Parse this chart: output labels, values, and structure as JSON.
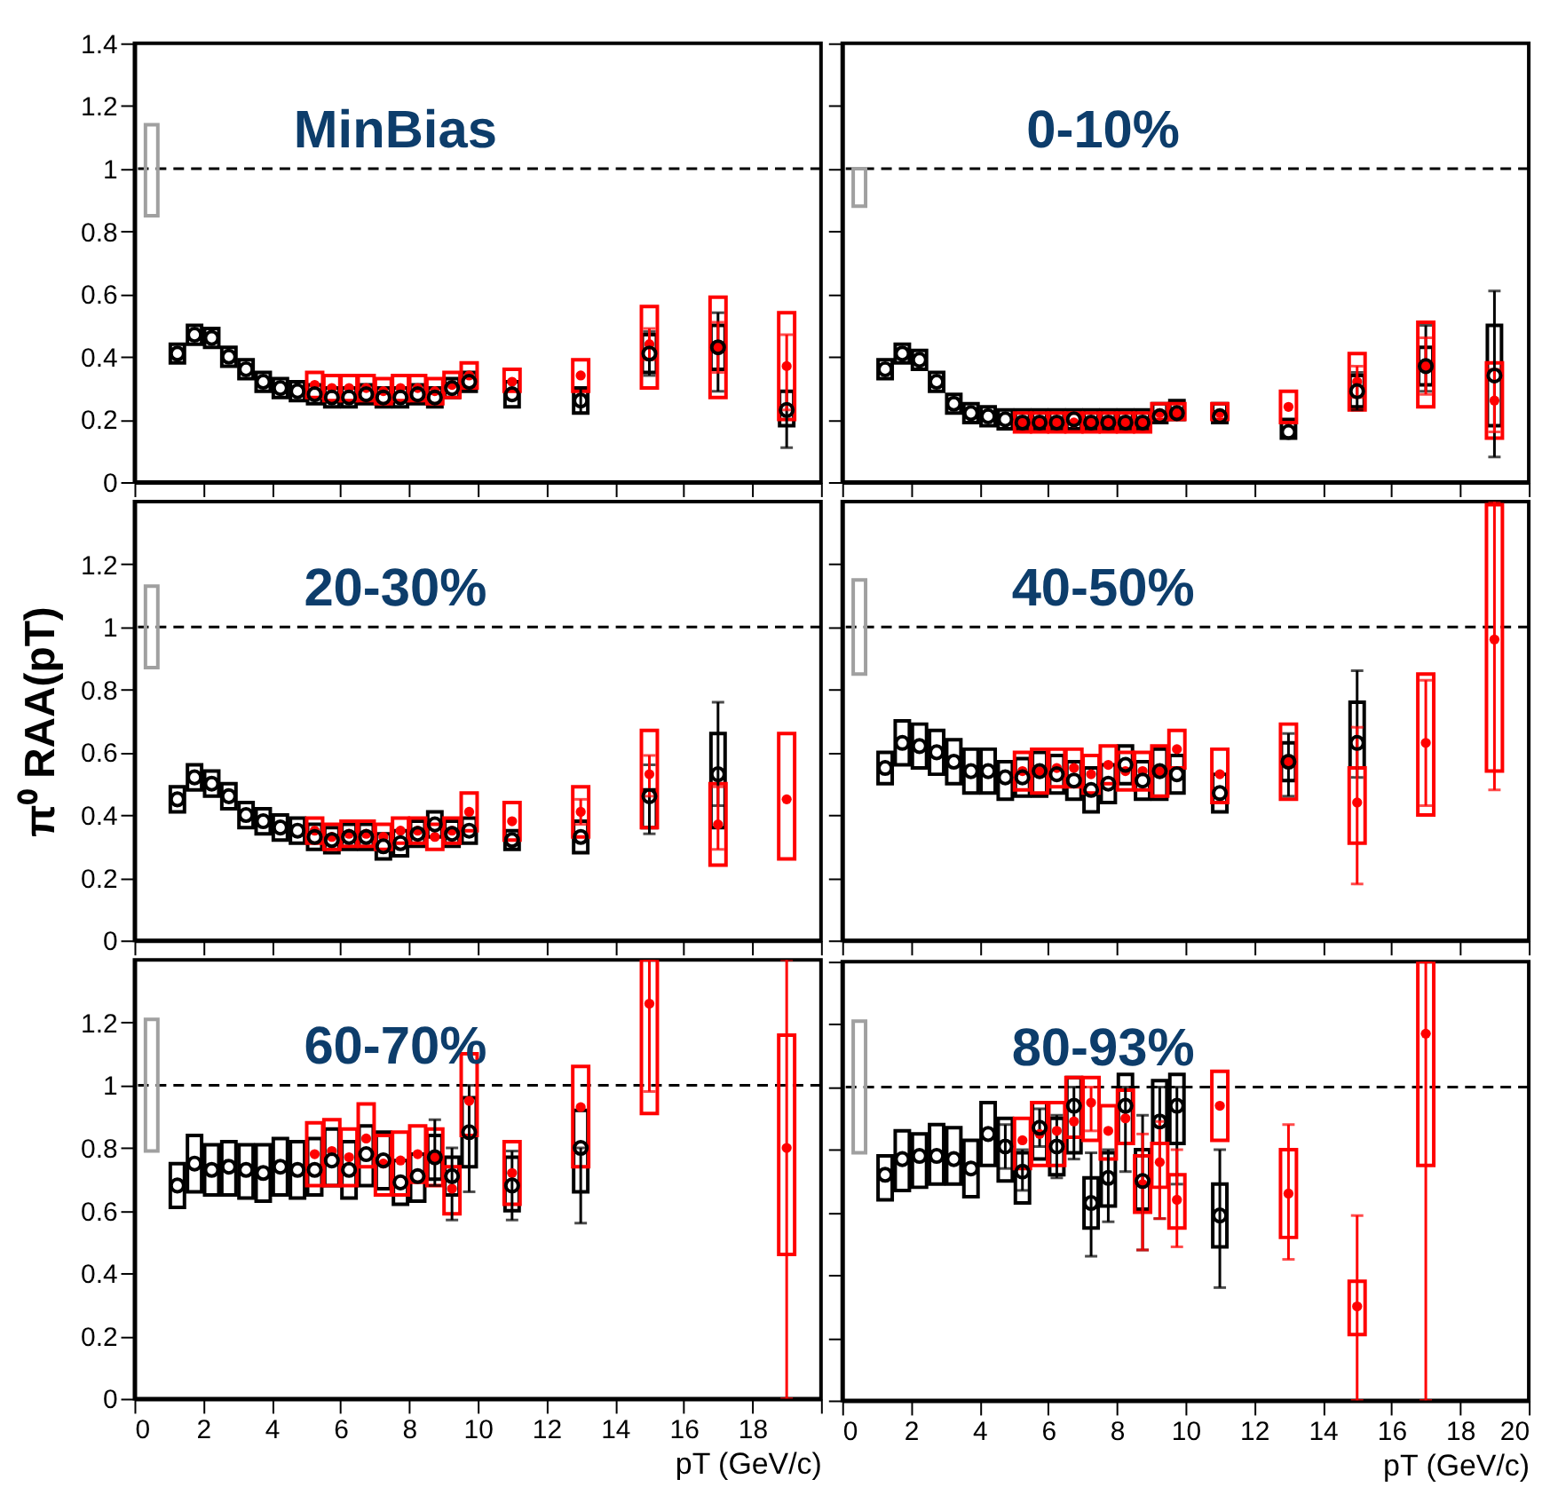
{
  "chart_data": [
    {
      "type": "scatter",
      "title": "MinBias",
      "xlim": [
        0,
        20
      ],
      "ylim": [
        0,
        1.4
      ],
      "xticks": [
        0,
        2,
        4,
        6,
        8,
        10,
        12,
        14,
        16,
        18,
        20
      ],
      "yticks": [
        0,
        0.2,
        0.4,
        0.6,
        0.8,
        1,
        1.2,
        1.4
      ],
      "tick_labels": "y",
      "grid": false,
      "ref_lines": [
        {
          "axis": "y",
          "value": 1,
          "line_style": "dashed",
          "color": "#000000"
        }
      ],
      "series": [
        {
          "type": "bar",
          "color": "#a0a0a0",
          "x": [
            0.5
          ],
          "base": [
            0.85
          ],
          "values": [
            0.29
          ]
        },
        {
          "type": "bar",
          "color": "#000000",
          "x": [
            1.25,
            1.75,
            2.25,
            2.75,
            3.25,
            3.75,
            4.25,
            4.75,
            5.25,
            5.75,
            6.25,
            6.75,
            7.25,
            7.75,
            8.25,
            8.75,
            9.25,
            9.75,
            11,
            13,
            15,
            17,
            19
          ],
          "base": [
            0.38,
            0.44,
            0.43,
            0.37,
            0.33,
            0.29,
            0.27,
            0.26,
            0.25,
            0.24,
            0.24,
            0.25,
            0.24,
            0.24,
            0.25,
            0.24,
            0.27,
            0.29,
            0.24,
            0.22,
            0.35,
            0.36,
            0.18
          ],
          "values": [
            0.06,
            0.06,
            0.06,
            0.06,
            0.06,
            0.06,
            0.06,
            0.06,
            0.06,
            0.06,
            0.06,
            0.06,
            0.06,
            0.06,
            0.06,
            0.06,
            0.06,
            0.06,
            0.08,
            0.08,
            0.12,
            0.14,
            0.11
          ]
        },
        {
          "type": "bar",
          "color": "#ff0000",
          "x": [
            5.25,
            5.75,
            6.25,
            6.75,
            7.25,
            7.75,
            8.25,
            8.75,
            9.25,
            9.75,
            11,
            13,
            15,
            17,
            19
          ],
          "base": [
            0.27,
            0.26,
            0.26,
            0.26,
            0.25,
            0.26,
            0.26,
            0.25,
            0.27,
            0.3,
            0.29,
            0.29,
            0.3,
            0.27,
            0.2
          ],
          "values": [
            0.08,
            0.08,
            0.08,
            0.08,
            0.08,
            0.08,
            0.08,
            0.08,
            0.08,
            0.08,
            0.07,
            0.1,
            0.26,
            0.32,
            0.34
          ]
        },
        {
          "type": "scatter",
          "marker": "circle",
          "color": "#000000",
          "x": [
            1.25,
            1.75,
            2.25,
            2.75,
            3.25,
            3.75,
            4.25,
            4.75,
            5.25,
            5.75,
            6.25,
            6.75,
            7.25,
            7.75,
            8.25,
            8.75,
            9.25,
            9.75,
            11,
            13,
            15,
            17,
            19
          ],
          "values": [
            0.41,
            0.47,
            0.46,
            0.4,
            0.36,
            0.32,
            0.3,
            0.29,
            0.28,
            0.27,
            0.27,
            0.28,
            0.27,
            0.27,
            0.28,
            0.27,
            0.3,
            0.32,
            0.28,
            0.26,
            0.41,
            0.43,
            0.23
          ],
          "errors": [
            null,
            null,
            null,
            null,
            null,
            null,
            null,
            null,
            null,
            null,
            null,
            null,
            null,
            null,
            null,
            null,
            null,
            null,
            null,
            [
              0.22,
              0.3
            ],
            [
              0.34,
              0.48
            ],
            [
              0.29,
              0.54
            ],
            [
              0.11,
              0.29
            ]
          ]
        },
        {
          "type": "scatter",
          "marker": "circle",
          "color": "#ff0000",
          "x": [
            5.25,
            5.75,
            6.25,
            6.75,
            7.25,
            7.75,
            8.25,
            8.75,
            9.25,
            9.75,
            11,
            13,
            15,
            17,
            19
          ],
          "values": [
            0.31,
            0.3,
            0.3,
            0.3,
            0.29,
            0.3,
            0.3,
            0.29,
            0.31,
            0.34,
            0.32,
            0.34,
            0.44,
            0.43,
            0.37
          ],
          "errors": [
            null,
            null,
            null,
            null,
            null,
            null,
            null,
            null,
            null,
            null,
            null,
            null,
            [
              0.39,
              0.49
            ],
            [
              0.35,
              0.51
            ],
            [
              0.23,
              0.47
            ]
          ]
        }
      ]
    },
    {
      "type": "scatter",
      "title": "0-10%",
      "xlim": [
        0,
        20
      ],
      "ylim": [
        0,
        1.4
      ],
      "xticks": [
        0,
        2,
        4,
        6,
        8,
        10,
        12,
        14,
        16,
        18,
        20
      ],
      "yticks": [
        0,
        0.2,
        0.4,
        0.6,
        0.8,
        1,
        1.2,
        1.4
      ],
      "tick_labels": false,
      "grid": false,
      "ref_lines": [
        {
          "axis": "y",
          "value": 1,
          "line_style": "dashed",
          "color": "#000000"
        }
      ],
      "series": [
        {
          "type": "bar",
          "color": "#a0a0a0",
          "x": [
            0.5
          ],
          "base": [
            0.88
          ],
          "values": [
            0.12
          ]
        },
        {
          "type": "bar",
          "color": "#000000",
          "x": [
            1.25,
            1.75,
            2.25,
            2.75,
            3.25,
            3.75,
            4.25,
            4.75,
            5.25,
            5.75,
            6.25,
            6.75,
            7.25,
            7.75,
            8.25,
            8.75,
            9.25,
            9.75,
            11,
            13,
            15,
            17,
            19
          ],
          "base": [
            0.33,
            0.38,
            0.36,
            0.29,
            0.22,
            0.19,
            0.18,
            0.17,
            0.17,
            0.17,
            0.17,
            0.17,
            0.17,
            0.17,
            0.17,
            0.17,
            0.19,
            0.2,
            0.19,
            0.14,
            0.24,
            0.31,
            0.18
          ],
          "values": [
            0.06,
            0.06,
            0.06,
            0.06,
            0.06,
            0.06,
            0.06,
            0.06,
            0.06,
            0.06,
            0.06,
            0.06,
            0.06,
            0.06,
            0.06,
            0.06,
            0.06,
            0.06,
            0.06,
            0.06,
            0.1,
            0.12,
            0.32
          ]
        },
        {
          "type": "bar",
          "color": "#ff0000",
          "x": [
            5.25,
            5.75,
            6.25,
            6.75,
            7.25,
            7.75,
            8.25,
            8.75,
            9.25,
            9.75,
            11,
            13,
            15,
            17,
            19
          ],
          "base": [
            0.16,
            0.16,
            0.16,
            0.16,
            0.16,
            0.16,
            0.16,
            0.16,
            0.2,
            0.2,
            0.2,
            0.19,
            0.23,
            0.24,
            0.14
          ],
          "values": [
            0.06,
            0.06,
            0.06,
            0.06,
            0.06,
            0.06,
            0.06,
            0.06,
            0.05,
            0.05,
            0.05,
            0.1,
            0.18,
            0.27,
            0.24
          ]
        },
        {
          "type": "scatter",
          "marker": "circle",
          "color": "#000000",
          "x": [
            1.25,
            1.75,
            2.25,
            2.75,
            3.25,
            3.75,
            4.25,
            4.75,
            5.25,
            5.75,
            6.25,
            6.75,
            7.25,
            7.75,
            8.25,
            8.75,
            9.25,
            9.75,
            11,
            13,
            15,
            17,
            19
          ],
          "values": [
            0.36,
            0.41,
            0.39,
            0.32,
            0.25,
            0.22,
            0.21,
            0.2,
            0.19,
            0.19,
            0.19,
            0.2,
            0.19,
            0.19,
            0.19,
            0.19,
            0.21,
            0.22,
            0.21,
            0.16,
            0.29,
            0.37,
            0.34
          ],
          "errors": [
            null,
            null,
            null,
            null,
            null,
            null,
            null,
            null,
            null,
            null,
            null,
            null,
            null,
            null,
            null,
            null,
            null,
            null,
            null,
            null,
            [
              0.23,
              0.35
            ],
            [
              0.29,
              0.5
            ],
            [
              0.08,
              0.61
            ]
          ]
        },
        {
          "type": "scatter",
          "marker": "circle",
          "color": "#ff0000",
          "x": [
            5.25,
            5.75,
            6.25,
            6.75,
            7.25,
            7.75,
            8.25,
            8.75,
            9.25,
            9.75,
            11,
            13,
            15,
            17,
            19
          ],
          "values": [
            0.19,
            0.19,
            0.19,
            0.19,
            0.19,
            0.19,
            0.19,
            0.19,
            0.22,
            0.22,
            0.22,
            0.24,
            0.32,
            0.37,
            0.26
          ],
          "errors": [
            null,
            null,
            null,
            null,
            null,
            null,
            null,
            null,
            null,
            null,
            null,
            null,
            [
              0.27,
              0.37
            ],
            [
              0.28,
              0.46
            ],
            [
              0.16,
              0.36
            ]
          ]
        }
      ]
    },
    {
      "type": "scatter",
      "title": "20-30%",
      "ylabel": "π⁰ RAA(pT)",
      "xlim": [
        0,
        20
      ],
      "ylim": [
        0,
        1.4
      ],
      "xticks": [
        0,
        2,
        4,
        6,
        8,
        10,
        12,
        14,
        16,
        18,
        20
      ],
      "yticks": [
        0,
        0.2,
        0.4,
        0.6,
        0.8,
        1,
        1.2
      ],
      "tick_labels": "y",
      "grid": false,
      "ref_lines": [
        {
          "axis": "y",
          "value": 1,
          "line_style": "dashed",
          "color": "#000000"
        }
      ],
      "series": [
        {
          "type": "bar",
          "color": "#a0a0a0",
          "x": [
            0.5
          ],
          "base": [
            0.87
          ],
          "values": [
            0.26
          ]
        },
        {
          "type": "bar",
          "color": "#000000",
          "x": [
            1.25,
            1.75,
            2.25,
            2.75,
            3.25,
            3.75,
            4.25,
            4.75,
            5.25,
            5.75,
            6.25,
            6.75,
            7.25,
            7.75,
            8.25,
            8.75,
            9.25,
            9.75,
            11,
            13,
            15,
            17
          ],
          "base": [
            0.41,
            0.48,
            0.46,
            0.42,
            0.36,
            0.34,
            0.32,
            0.31,
            0.29,
            0.28,
            0.29,
            0.29,
            0.26,
            0.27,
            0.3,
            0.33,
            0.3,
            0.31,
            0.29,
            0.28,
            0.36,
            0.36
          ],
          "values": [
            0.08,
            0.08,
            0.08,
            0.08,
            0.08,
            0.08,
            0.08,
            0.08,
            0.08,
            0.08,
            0.08,
            0.08,
            0.08,
            0.08,
            0.08,
            0.08,
            0.08,
            0.08,
            0.06,
            0.1,
            0.12,
            0.3
          ]
        },
        {
          "type": "bar",
          "color": "#ff0000",
          "x": [
            5.25,
            5.75,
            6.25,
            6.75,
            7.25,
            7.75,
            8.25,
            8.75,
            9.25,
            9.75,
            11,
            13,
            15,
            17,
            19
          ],
          "base": [
            0.31,
            0.29,
            0.3,
            0.3,
            0.29,
            0.31,
            0.31,
            0.29,
            0.31,
            0.35,
            0.32,
            0.33,
            0.36,
            0.24,
            0.26
          ],
          "values": [
            0.08,
            0.08,
            0.08,
            0.08,
            0.08,
            0.08,
            0.08,
            0.08,
            0.08,
            0.12,
            0.12,
            0.16,
            0.31,
            0.26,
            0.4
          ]
        },
        {
          "type": "scatter",
          "marker": "circle",
          "color": "#000000",
          "x": [
            1.25,
            1.75,
            2.25,
            2.75,
            3.25,
            3.75,
            4.25,
            4.75,
            5.25,
            5.75,
            6.25,
            6.75,
            7.25,
            7.75,
            8.25,
            8.75,
            9.25,
            9.75,
            11,
            13,
            15,
            17
          ],
          "values": [
            0.45,
            0.52,
            0.5,
            0.46,
            0.4,
            0.38,
            0.36,
            0.35,
            0.33,
            0.32,
            0.33,
            0.33,
            0.3,
            0.31,
            0.34,
            0.37,
            0.34,
            0.35,
            0.32,
            0.33,
            0.46,
            0.53
          ],
          "errors": [
            null,
            null,
            null,
            null,
            null,
            null,
            null,
            null,
            null,
            null,
            null,
            null,
            null,
            null,
            null,
            null,
            null,
            null,
            null,
            null,
            [
              0.34,
              0.56
            ],
            [
              0.43,
              0.76
            ]
          ]
        },
        {
          "type": "scatter",
          "marker": "circle",
          "color": "#ff0000",
          "x": [
            5.25,
            5.75,
            6.25,
            6.75,
            7.25,
            7.75,
            8.25,
            8.75,
            9.25,
            9.75,
            11,
            13,
            15,
            17,
            19
          ],
          "values": [
            0.35,
            0.33,
            0.34,
            0.34,
            0.33,
            0.35,
            0.35,
            0.33,
            0.35,
            0.41,
            0.38,
            0.41,
            0.53,
            0.37,
            0.45
          ],
          "errors": [
            null,
            null,
            null,
            null,
            null,
            null,
            null,
            null,
            null,
            null,
            null,
            [
              0.37,
              0.45
            ],
            [
              0.46,
              0.59
            ],
            [
              0.29,
              0.49
            ],
            null
          ]
        }
      ]
    },
    {
      "type": "scatter",
      "title": "40-50%",
      "xlim": [
        0,
        20
      ],
      "ylim": [
        0,
        1.4
      ],
      "xticks": [
        0,
        2,
        4,
        6,
        8,
        10,
        12,
        14,
        16,
        18,
        20
      ],
      "yticks": [
        0,
        0.2,
        0.4,
        0.6,
        0.8,
        1,
        1.2
      ],
      "tick_labels": false,
      "grid": false,
      "ref_lines": [
        {
          "axis": "y",
          "value": 1,
          "line_style": "dashed",
          "color": "#000000"
        }
      ],
      "series": [
        {
          "type": "bar",
          "color": "#a0a0a0",
          "x": [
            0.5
          ],
          "base": [
            0.85
          ],
          "values": [
            0.3
          ]
        },
        {
          "type": "bar",
          "color": "#000000",
          "x": [
            1.25,
            1.75,
            2.25,
            2.75,
            3.25,
            3.75,
            4.25,
            4.75,
            5.25,
            5.75,
            6.25,
            6.75,
            7.25,
            7.75,
            8.25,
            8.75,
            9.25,
            9.75,
            11,
            13,
            15
          ],
          "base": [
            0.5,
            0.56,
            0.55,
            0.53,
            0.5,
            0.47,
            0.47,
            0.45,
            0.46,
            0.46,
            0.47,
            0.45,
            0.41,
            0.44,
            0.5,
            0.45,
            0.45,
            0.47,
            0.41,
            0.51,
            0.55
          ],
          "values": [
            0.1,
            0.14,
            0.14,
            0.14,
            0.14,
            0.14,
            0.14,
            0.12,
            0.12,
            0.14,
            0.12,
            0.12,
            0.14,
            0.12,
            0.12,
            0.12,
            0.16,
            0.12,
            0.12,
            0.12,
            0.21
          ]
        },
        {
          "type": "bar",
          "color": "#ff0000",
          "x": [
            5.25,
            5.75,
            6.25,
            6.75,
            7.25,
            7.75,
            8.25,
            8.75,
            9.25,
            9.75,
            11,
            13,
            15,
            17,
            19
          ],
          "base": [
            0.48,
            0.47,
            0.49,
            0.49,
            0.47,
            0.5,
            0.48,
            0.48,
            0.46,
            0.55,
            0.44,
            0.45,
            0.31,
            0.4,
            0.54
          ],
          "values": [
            0.12,
            0.14,
            0.12,
            0.12,
            0.12,
            0.12,
            0.12,
            0.12,
            0.16,
            0.12,
            0.17,
            0.24,
            0.24,
            0.45,
            0.85
          ]
        },
        {
          "type": "scatter",
          "marker": "circle",
          "color": "#000000",
          "x": [
            1.25,
            1.75,
            2.25,
            2.75,
            3.25,
            3.75,
            4.25,
            4.75,
            5.25,
            5.75,
            6.25,
            6.75,
            7.25,
            7.75,
            8.25,
            8.75,
            9.25,
            9.75,
            11,
            13,
            15
          ],
          "values": [
            0.55,
            0.63,
            0.62,
            0.6,
            0.57,
            0.54,
            0.54,
            0.52,
            0.52,
            0.54,
            0.53,
            0.51,
            0.48,
            0.5,
            0.56,
            0.51,
            0.54,
            0.53,
            0.47,
            0.57,
            0.63
          ],
          "errors": [
            null,
            null,
            null,
            null,
            null,
            null,
            null,
            null,
            null,
            null,
            null,
            null,
            null,
            null,
            null,
            null,
            null,
            null,
            null,
            [
              0.46,
              0.66
            ],
            [
              0.52,
              0.86
            ]
          ]
        },
        {
          "type": "scatter",
          "marker": "circle",
          "color": "#ff0000",
          "x": [
            5.25,
            5.75,
            6.25,
            6.75,
            7.25,
            7.75,
            8.25,
            8.75,
            9.25,
            9.75,
            11,
            13,
            15,
            17,
            19
          ],
          "values": [
            0.54,
            0.54,
            0.55,
            0.55,
            0.53,
            0.56,
            0.54,
            0.54,
            0.54,
            0.61,
            0.53,
            0.57,
            0.44,
            0.63,
            0.96
          ],
          "errors": [
            null,
            null,
            null,
            null,
            null,
            null,
            null,
            null,
            null,
            null,
            null,
            null,
            [
              0.18,
              0.68
            ],
            [
              0.43,
              0.83
            ],
            [
              0.48,
              1.4
            ]
          ]
        }
      ]
    },
    {
      "type": "scatter",
      "title": "60-70%",
      "xlabel": "pT (GeV/c)",
      "xlim": [
        0,
        20
      ],
      "ylim": [
        0,
        1.4
      ],
      "xticks": [
        0,
        2,
        4,
        6,
        8,
        10,
        12,
        14,
        16,
        18,
        {
          "value": 20,
          "label": null
        }
      ],
      "yticks": [
        0,
        0.2,
        0.4,
        0.6,
        0.8,
        1,
        1.2
      ],
      "grid": false,
      "ref_lines": [
        {
          "axis": "y",
          "value": 1,
          "line_style": "dashed",
          "color": "#000000"
        }
      ],
      "series": [
        {
          "type": "bar",
          "color": "#a0a0a0",
          "x": [
            0.5
          ],
          "base": [
            0.79
          ],
          "values": [
            0.42
          ]
        },
        {
          "type": "bar",
          "color": "#000000",
          "x": [
            1.25,
            1.75,
            2.25,
            2.75,
            3.25,
            3.75,
            4.25,
            4.75,
            5.25,
            5.75,
            6.25,
            6.75,
            7.25,
            7.75,
            8.25,
            8.75,
            9.25,
            9.75,
            11,
            13
          ],
          "base": [
            0.61,
            0.66,
            0.65,
            0.65,
            0.64,
            0.63,
            0.65,
            0.64,
            0.65,
            0.68,
            0.64,
            0.68,
            0.67,
            0.62,
            0.63,
            0.7,
            0.65,
            0.74,
            0.6,
            0.66
          ],
          "values": [
            0.14,
            0.18,
            0.16,
            0.17,
            0.17,
            0.18,
            0.18,
            0.18,
            0.18,
            0.18,
            0.18,
            0.19,
            0.18,
            0.14,
            0.15,
            0.14,
            0.12,
            0.22,
            0.17,
            0.26
          ]
        },
        {
          "type": "bar",
          "color": "#ff0000",
          "x": [
            5.25,
            5.75,
            6.25,
            6.75,
            7.25,
            7.75,
            8.25,
            8.75,
            9.25,
            9.75,
            11,
            13,
            15,
            19
          ],
          "base": [
            0.68,
            0.68,
            0.68,
            0.74,
            0.65,
            0.65,
            0.69,
            0.68,
            0.59,
            0.84,
            0.62,
            0.74,
            0.91,
            0.46
          ],
          "values": [
            0.2,
            0.21,
            0.18,
            0.2,
            0.19,
            0.2,
            0.18,
            0.18,
            0.15,
            0.26,
            0.2,
            0.32,
            0.49,
            0.7
          ]
        },
        {
          "type": "scatter",
          "marker": "circle",
          "color": "#000000",
          "x": [
            1.25,
            1.75,
            2.25,
            2.75,
            3.25,
            3.75,
            4.25,
            4.75,
            5.25,
            5.75,
            6.25,
            6.75,
            7.25,
            7.75,
            8.25,
            8.75,
            9.25,
            9.75,
            11,
            13
          ],
          "values": [
            0.68,
            0.75,
            0.73,
            0.74,
            0.73,
            0.72,
            0.74,
            0.73,
            0.73,
            0.76,
            0.73,
            0.78,
            0.76,
            0.69,
            0.71,
            0.77,
            0.71,
            0.85,
            0.68,
            0.8
          ],
          "errors": [
            null,
            null,
            null,
            null,
            null,
            null,
            null,
            null,
            null,
            null,
            null,
            null,
            null,
            null,
            null,
            [
              0.68,
              0.89
            ],
            [
              0.57,
              0.8
            ],
            [
              0.66,
              1.0
            ],
            [
              0.57,
              0.79
            ],
            [
              0.56,
              0.8
            ]
          ]
        },
        {
          "type": "scatter",
          "marker": "circle",
          "color": "#ff0000",
          "x": [
            5.25,
            5.75,
            6.25,
            6.75,
            7.25,
            7.75,
            8.25,
            8.75,
            9.25,
            9.75,
            11,
            13,
            15,
            19
          ],
          "values": [
            0.78,
            0.79,
            0.77,
            0.83,
            0.75,
            0.76,
            0.78,
            0.77,
            0.67,
            0.95,
            0.72,
            0.93,
            1.26,
            0.8
          ],
          "errors": [
            null,
            null,
            null,
            null,
            null,
            null,
            null,
            null,
            null,
            null,
            null,
            null,
            [
              0.98,
              1.4
            ],
            [
              0,
              1.4
            ]
          ]
        }
      ]
    },
    {
      "type": "scatter",
      "title": "80-93%",
      "xlabel": "pT (GeV/c)",
      "xlim": [
        0,
        20
      ],
      "ylim": [
        0,
        1.4
      ],
      "xticks": [
        0,
        2,
        4,
        6,
        8,
        10,
        12,
        14,
        16,
        18,
        20
      ],
      "yticks": [
        0,
        0.2,
        0.4,
        0.6,
        0.8,
        1,
        1.2,
        1.4
      ],
      "tick_labels": "x",
      "grid": false,
      "ref_lines": [
        {
          "axis": "y",
          "value": 1,
          "line_style": "dashed",
          "color": "#000000"
        }
      ],
      "series": [
        {
          "type": "bar",
          "color": "#a0a0a0",
          "x": [
            0.5
          ],
          "base": [
            0.79
          ],
          "values": [
            0.42
          ]
        },
        {
          "type": "bar",
          "color": "#000000",
          "x": [
            1.25,
            1.75,
            2.25,
            2.75,
            3.25,
            3.75,
            4.25,
            4.75,
            5.25,
            5.75,
            6.25,
            6.75,
            7.25,
            7.75,
            8.25,
            8.75,
            9.25,
            9.75,
            11
          ],
          "base": [
            0.64,
            0.67,
            0.68,
            0.69,
            0.69,
            0.65,
            0.75,
            0.7,
            0.63,
            0.77,
            0.72,
            0.79,
            0.55,
            0.62,
            0.82,
            0.61,
            0.82,
            0.82,
            0.49
          ],
          "values": [
            0.14,
            0.19,
            0.17,
            0.19,
            0.18,
            0.18,
            0.2,
            0.2,
            0.16,
            0.18,
            0.18,
            0.24,
            0.16,
            0.17,
            0.22,
            0.19,
            0.2,
            0.22,
            0.2
          ]
        },
        {
          "type": "bar",
          "color": "#ff0000",
          "x": [
            5.25,
            5.75,
            6.25,
            6.75,
            7.25,
            7.75,
            8.25,
            8.75,
            9.25,
            9.75,
            11,
            13,
            15,
            17
          ],
          "base": [
            0.74,
            0.75,
            0.75,
            0.84,
            0.83,
            0.77,
            0.82,
            0.6,
            0.68,
            0.55,
            0.83,
            0.52,
            0.21,
            0.75
          ],
          "values": [
            0.16,
            0.2,
            0.2,
            0.19,
            0.2,
            0.17,
            0.17,
            0.18,
            0.14,
            0.17,
            0.22,
            0.28,
            0.17,
            0.65
          ]
        },
        {
          "type": "scatter",
          "marker": "circle",
          "color": "#000000",
          "x": [
            1.25,
            1.75,
            2.25,
            2.75,
            3.25,
            3.75,
            4.25,
            4.75,
            5.25,
            5.75,
            6.25,
            6.75,
            7.25,
            7.75,
            8.25,
            8.75,
            9.25,
            9.75,
            11
          ],
          "values": [
            0.72,
            0.77,
            0.78,
            0.78,
            0.77,
            0.74,
            0.85,
            0.81,
            0.73,
            0.87,
            0.81,
            0.94,
            0.63,
            0.71,
            0.94,
            0.7,
            0.89,
            0.94,
            0.59
          ],
          "errors": [
            null,
            null,
            null,
            null,
            null,
            null,
            null,
            [
              0.74,
              0.88
            ],
            [
              0.67,
              0.8
            ],
            [
              0.81,
              0.93
            ],
            [
              0.71,
              0.91
            ],
            [
              0.77,
              1.0
            ],
            [
              0.46,
              0.79
            ],
            [
              0.57,
              0.8
            ],
            [
              0.73,
              1.0
            ],
            [
              0.48,
              0.91
            ],
            [
              0.58,
              1.0
            ],
            [
              0.69,
              1.0
            ],
            [
              0.36,
              0.8
            ]
          ]
        },
        {
          "type": "scatter",
          "marker": "circle",
          "color": "#ff0000",
          "x": [
            5.25,
            5.75,
            6.25,
            6.75,
            7.25,
            7.75,
            8.25,
            8.75,
            9.25,
            9.75,
            11,
            13,
            15,
            17
          ],
          "values": [
            0.83,
            0.85,
            0.86,
            0.89,
            0.95,
            0.86,
            0.9,
            0.69,
            0.76,
            0.64,
            0.94,
            0.66,
            0.3,
            1.17
          ],
          "errors": [
            null,
            null,
            null,
            null,
            [
              0.86,
              1.0
            ],
            null,
            null,
            [
              0.48,
              0.85
            ],
            [
              0.58,
              0.89
            ],
            [
              0.49,
              0.8
            ],
            null,
            [
              0.45,
              0.88
            ],
            [
              0,
              0.59
            ],
            [
              0,
              1.4
            ]
          ]
        }
      ]
    }
  ]
}
